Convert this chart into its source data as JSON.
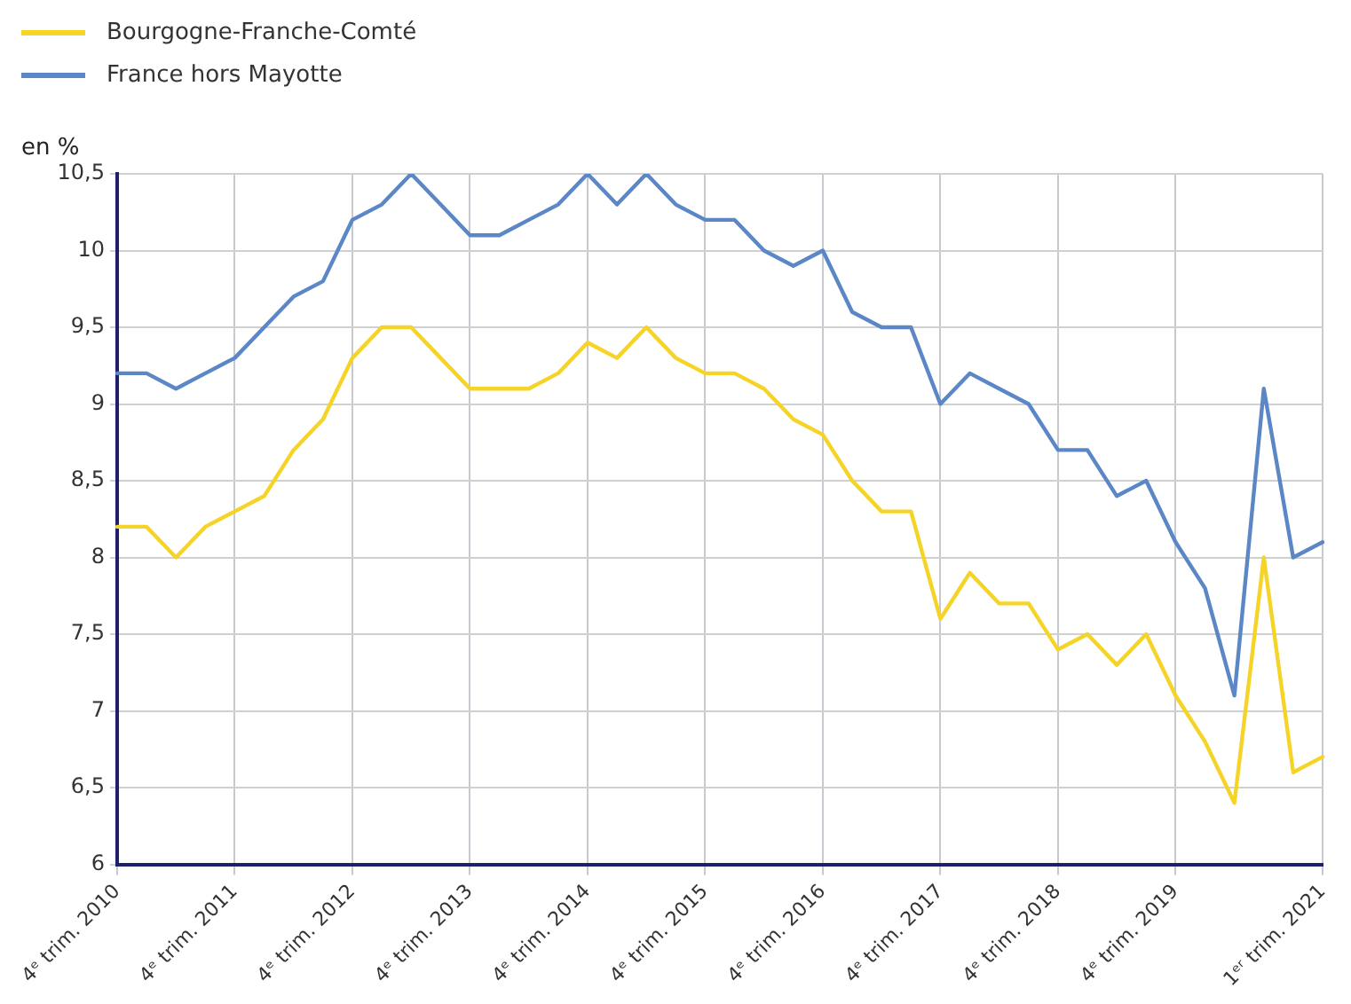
{
  "chart_data": {
    "type": "line",
    "ylabel": "en %",
    "categories": [
      "4ᵉ trim. 2010",
      null,
      null,
      null,
      "4ᵉ trim. 2011",
      null,
      null,
      null,
      "4ᵉ trim. 2012",
      null,
      null,
      null,
      "4ᵉ trim. 2013",
      null,
      null,
      null,
      "4ᵉ trim. 2014",
      null,
      null,
      null,
      "4ᵉ trim. 2015",
      null,
      null,
      null,
      "4ᵉ trim. 2016",
      null,
      null,
      null,
      "4ᵉ trim. 2017",
      null,
      null,
      null,
      "4ᵉ trim. 2018",
      null,
      null,
      null,
      "4ᵉ trim. 2019",
      null,
      null,
      null,
      null,
      "1ᵉʳ trim. 2021"
    ],
    "series": [
      {
        "name": "Bourgogne-Franche-Comté",
        "color": "#f5d327",
        "values": [
          8.2,
          8.2,
          8.0,
          8.2,
          8.3,
          8.4,
          8.7,
          8.9,
          9.3,
          9.5,
          9.5,
          9.3,
          9.1,
          9.1,
          9.1,
          9.2,
          9.4,
          9.3,
          9.5,
          9.3,
          9.2,
          9.2,
          9.1,
          8.9,
          8.8,
          8.5,
          8.3,
          8.3,
          7.6,
          7.9,
          7.7,
          7.7,
          7.4,
          7.5,
          7.3,
          7.5,
          7.1,
          6.8,
          6.4,
          8.0,
          6.6,
          6.7
        ]
      },
      {
        "name": "France hors Mayotte",
        "color": "#5b87c7",
        "values": [
          9.2,
          9.2,
          9.1,
          9.2,
          9.3,
          9.5,
          9.7,
          9.8,
          10.2,
          10.3,
          10.5,
          10.3,
          10.1,
          10.1,
          10.2,
          10.3,
          10.5,
          10.3,
          10.5,
          10.3,
          10.2,
          10.2,
          10.0,
          9.9,
          10.0,
          9.6,
          9.5,
          9.5,
          9.0,
          9.2,
          9.1,
          9.0,
          8.7,
          8.7,
          8.4,
          8.5,
          8.1,
          7.8,
          7.1,
          9.1,
          8.0,
          8.1
        ]
      }
    ],
    "ylim": [
      6,
      10.5
    ],
    "yticks": [
      6,
      {
        "value": 6.5,
        "label": "6,5"
      },
      7,
      {
        "value": 7.5,
        "label": "7,5"
      },
      8,
      {
        "value": 8.5,
        "label": "8,5"
      },
      9,
      {
        "value": 9.5,
        "label": "9,5"
      },
      10,
      {
        "value": 10.5,
        "label": "10,5"
      }
    ],
    "grid": true,
    "legend": "top left",
    "marker": "none",
    "line_style": "solid"
  }
}
